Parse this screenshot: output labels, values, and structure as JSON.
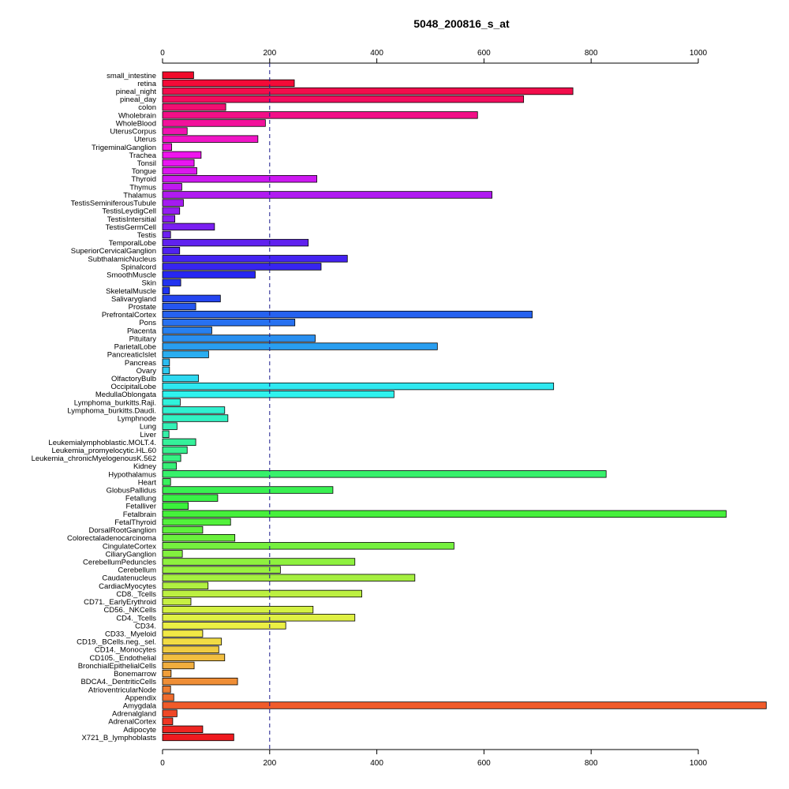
{
  "chart_data": {
    "type": "bar",
    "orientation": "horizontal",
    "title": "5048_200816_s_at",
    "xlabel": "",
    "ylabel": "",
    "xlim": [
      0,
      1130
    ],
    "x_ticks": [
      0,
      200,
      400,
      600,
      800,
      1000
    ],
    "x_tick_labels": [
      "0",
      "200",
      "400",
      "600",
      "800",
      "1000"
    ],
    "reference_line": 200,
    "grid": false,
    "categories": [
      "small_intestine",
      "retina",
      "pineal_night",
      "pineal_day",
      "colon",
      "Wholebrain",
      "WholeBlood",
      "UterusCorpus",
      "Uterus",
      "TrigeminalGanglion",
      "Trachea",
      "Tonsil",
      "Tongue",
      "Thyroid",
      "Thymus",
      "Thalamus",
      "TestisSeminiferousTubule",
      "TestisLeydigCell",
      "TestisIntersitial",
      "TestisGermCell",
      "Testis",
      "TemporalLobe",
      "SuperiorCervicalGanglion",
      "SubthalamicNucleus",
      "Spinalcord",
      "SmoothMuscle",
      "Skin",
      "SkeletalMuscle",
      "Salivarygland",
      "Prostate",
      "PrefrontalCortex",
      "Pons",
      "Placenta",
      "Pituitary",
      "ParietalLobe",
      "PancreaticIslet",
      "Pancreas",
      "Ovary",
      "OlfactoryBulb",
      "OccipitalLobe",
      "MedullaOblongata",
      "Lymphoma_burkitts.Raji.",
      "Lymphoma_burkitts.Daudi.",
      "Lymphnode",
      "Lung",
      "Liver",
      "Leukemialymphoblastic.MOLT.4.",
      "Leukemia_promyelocytic.HL.60",
      "Leukemia_chronicMyelogenousK.562",
      "Kidney",
      "Hypothalamus",
      "Heart",
      "GlobusPallidus",
      "Fetallung",
      "Fetalliver",
      "Fetalbrain",
      "FetalThyroid",
      "DorsalRootGanglion",
      "Colorectaladenocarcinoma",
      "CingulateCortex",
      "CiliaryGanglion",
      "CerebellumPeduncles",
      "Cerebellum",
      "Caudatenucleus",
      "CardiacMyocytes",
      "CD8._Tcells",
      "CD71._EarlyErythroid",
      "CD56._NKCells",
      "CD4._Tcells",
      "CD34.",
      "CD33._Myeloid",
      "CD19._BCells.neg._sel.",
      "CD14._Monocytes",
      "CD105._Endothelial",
      "BronchialEpithelialCells",
      "Bonemarrow",
      "BDCA4._DentriticCells",
      "AtrioventricularNode",
      "Appendix",
      "Amygdala",
      "Adrenalgland",
      "AdrenalCortex",
      "Adipocyte",
      "X721_B_lymphoblasts"
    ],
    "values": [
      58,
      246,
      766,
      674,
      118,
      588,
      192,
      46,
      178,
      17,
      72,
      59,
      64,
      288,
      36,
      615,
      39,
      32,
      23,
      97,
      15,
      272,
      32,
      345,
      296,
      173,
      34,
      13,
      108,
      62,
      690,
      247,
      92,
      285,
      513,
      86,
      13,
      13,
      67,
      730,
      432,
      33,
      116,
      122,
      27,
      12,
      62,
      46,
      34,
      26,
      828,
      15,
      318,
      103,
      48,
      1052,
      127,
      75,
      135,
      544,
      37,
      359,
      220,
      471,
      85,
      372,
      53,
      281,
      359,
      230,
      75,
      110,
      105,
      116,
      59,
      16,
      140,
      15,
      21,
      1127,
      27,
      19,
      75,
      133
    ],
    "colors": [
      "#F00A2A",
      "#F40B38",
      "#F20E4C",
      "#F20D5E",
      "#F11072",
      "#F21087",
      "#F2119B",
      "#F012B0",
      "#F015C6",
      "#F115DA",
      "#EE16ED",
      "#E816F1",
      "#DB17EF",
      "#CD18F1",
      "#C019F1",
      "#B01BF0",
      "#A41BF0",
      "#951DF1",
      "#8A1EF1",
      "#7A1FF1",
      "#6D20F1",
      "#6021EF",
      "#5022F0",
      "#4423F1",
      "#3725F0",
      "#2727F2",
      "#2233EF",
      "#1F33F3",
      "#2445F0",
      "#2556F0",
      "#2662F0",
      "#2771F1",
      "#2780F0",
      "#298FF0",
      "#299EF0",
      "#2AADF0",
      "#2BBCF1",
      "#2CCBF0",
      "#2DD9F1",
      "#2EE8F0",
      "#2FF3EE",
      "#30F2DC",
      "#30F0CF",
      "#31F2C2",
      "#33F0B6",
      "#34F0A8",
      "#35F19A",
      "#36F18F",
      "#36F182",
      "#36F077",
      "#37F16B",
      "#38F15D",
      "#39F051",
      "#39F046",
      "#3BF13B",
      "#46F03B",
      "#52F13B",
      "#5EF03C",
      "#6AF03C",
      "#75F03E",
      "#82F13F",
      "#8EF13F",
      "#99F040",
      "#A5EF40",
      "#B0F041",
      "#BCF041",
      "#C7F042",
      "#D4F143",
      "#DFF044",
      "#EBEF44",
      "#F1E845",
      "#F1DB44",
      "#EFCB42",
      "#F1BE40",
      "#F1AE3E",
      "#F09E3A",
      "#EF8E36",
      "#EF7E32",
      "#F06D2E",
      "#F05B2A",
      "#EF4726",
      "#EE3624",
      "#EE2521",
      "#EF1A1F"
    ]
  }
}
